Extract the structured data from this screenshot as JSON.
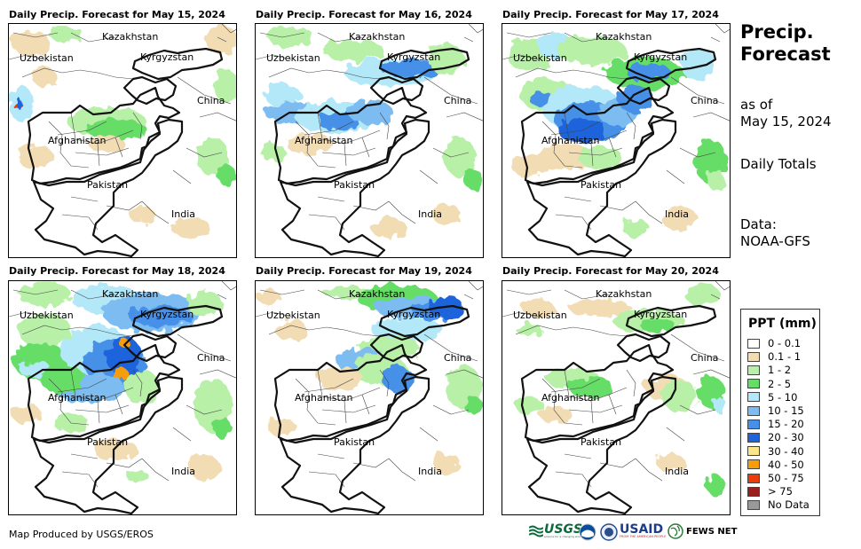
{
  "panels": [
    {
      "title": "Daily Precip. Forecast for May 15, 2024"
    },
    {
      "title": "Daily Precip. Forecast for May 16, 2024"
    },
    {
      "title": "Daily Precip. Forecast for May 17, 2024"
    },
    {
      "title": "Daily Precip. Forecast for May 18, 2024"
    },
    {
      "title": "Daily Precip. Forecast for May 19, 2024"
    },
    {
      "title": "Daily Precip. Forecast for May 20, 2024"
    }
  ],
  "map_labels": {
    "kazakhstan": "Kazakhstan",
    "uzbekistan": "Uzbekistan",
    "kyrgyzstan": "Kyrgyzstan",
    "china": "China",
    "afghanistan": "Afghanistan",
    "pakistan": "Pakistan",
    "india": "India"
  },
  "sidebar": {
    "title_line1": "Precip.",
    "title_line2": "Forecast",
    "asof_line1": "as of",
    "asof_line2": "May 15, 2024",
    "totals": "Daily Totals",
    "data_line1": "Data:",
    "data_line2": "NOAA-GFS"
  },
  "legend": {
    "title": "PPT (mm)",
    "items": [
      {
        "label": "0 - 0.1",
        "color": "#ffffff"
      },
      {
        "label": "0.1 - 1",
        "color": "#f2dcb4"
      },
      {
        "label": "1 - 2",
        "color": "#b8f0a8"
      },
      {
        "label": "2 - 5",
        "color": "#66dd66"
      },
      {
        "label": "5 - 10",
        "color": "#b2e8f8"
      },
      {
        "label": "10 - 15",
        "color": "#7cbcf0"
      },
      {
        "label": "15 - 20",
        "color": "#4690e8"
      },
      {
        "label": "20 - 30",
        "color": "#1e64dc"
      },
      {
        "label": "30 - 40",
        "color": "#fae68c"
      },
      {
        "label": "40 - 50",
        "color": "#f59e0a"
      },
      {
        "label": "50 - 75",
        "color": "#ec3c0a"
      },
      {
        "label": "> 75",
        "color": "#9a1e1e"
      },
      {
        "label": "No Data",
        "color": "#999999"
      }
    ]
  },
  "footer": {
    "credit": "Map Produced by USGS/EROS"
  },
  "logos": {
    "usgs": "USGS",
    "usgs_tagline": "science for a changing world",
    "usaid": "USAID",
    "usaid_tagline": "FROM THE AMERICAN PEOPLE",
    "fewsnet": "FEWS NET"
  }
}
